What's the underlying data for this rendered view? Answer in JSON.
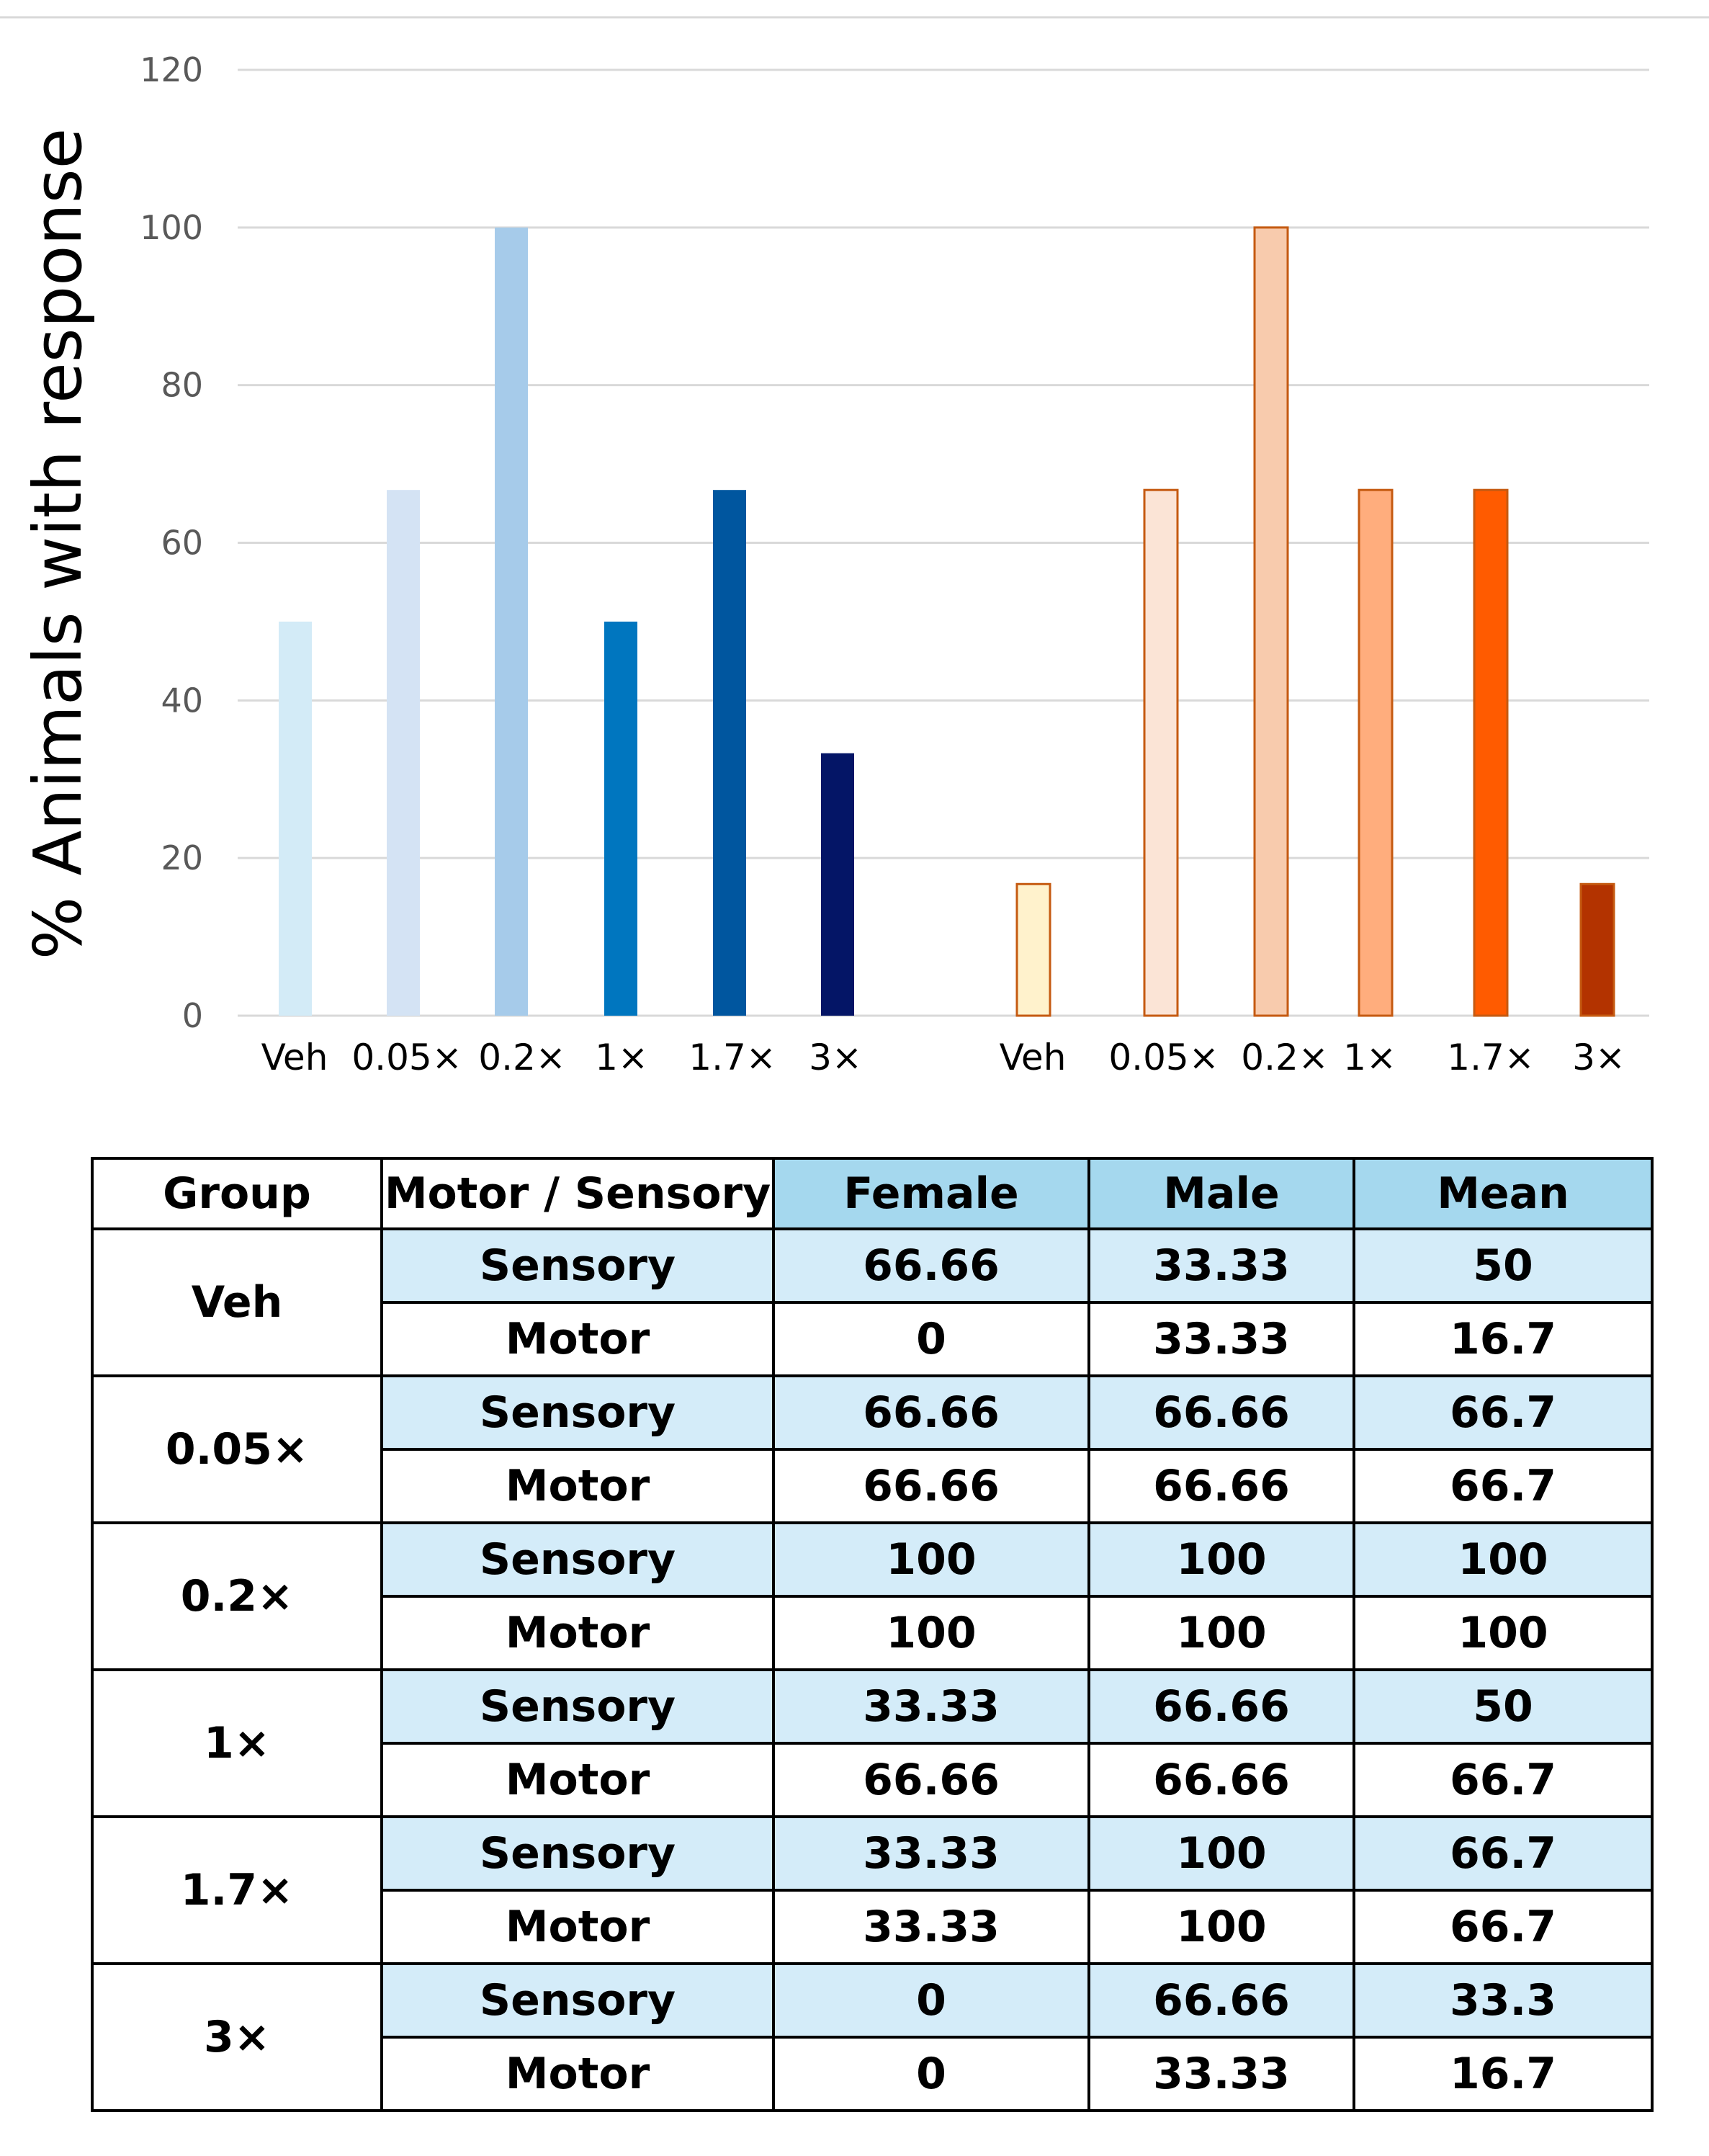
{
  "chart_data": {
    "type": "bar",
    "ylabel": "% Animals with response",
    "ylim": [
      0,
      120
    ],
    "yticks": [
      0,
      20,
      40,
      60,
      80,
      100,
      120
    ],
    "grid": true,
    "series": [
      {
        "name": "Female",
        "categories": [
          "Veh",
          "0.05×",
          "0.2×",
          "1×",
          "1.7×",
          "3×"
        ],
        "values": [
          50,
          66.7,
          100,
          50,
          66.7,
          33.3
        ],
        "colors": [
          "#d3ebf7",
          "#d4e3f4",
          "#a6cbea",
          "#0076bf",
          "#00569f",
          "#041566"
        ]
      },
      {
        "name": "Male",
        "categories": [
          "Veh",
          "0.05×",
          "0.2×",
          "1×",
          "1.7×",
          "3×"
        ],
        "values": [
          16.7,
          66.7,
          100,
          66.7,
          66.7,
          16.7
        ],
        "colors": [
          "#fff2cc",
          "#fbe4d6",
          "#f8cbad",
          "#ffad7d",
          "#ff5b00",
          "#b33300"
        ],
        "border": "#c55a11"
      }
    ]
  },
  "table": {
    "headers": [
      "Group",
      "Motor / Sensory",
      "Female",
      "Male",
      "Mean"
    ],
    "groups": [
      {
        "group": "Veh",
        "rows": [
          {
            "type": "Sensory",
            "female": "66.66",
            "male": "33.33",
            "mean": "50"
          },
          {
            "type": "Motor",
            "female": "0",
            "male": "33.33",
            "mean": "16.7"
          }
        ]
      },
      {
        "group": "0.05×",
        "rows": [
          {
            "type": "Sensory",
            "female": "66.66",
            "male": "66.66",
            "mean": "66.7"
          },
          {
            "type": "Motor",
            "female": "66.66",
            "male": "66.66",
            "mean": "66.7"
          }
        ]
      },
      {
        "group": "0.2×",
        "rows": [
          {
            "type": "Sensory",
            "female": "100",
            "male": "100",
            "mean": "100"
          },
          {
            "type": "Motor",
            "female": "100",
            "male": "100",
            "mean": "100"
          }
        ]
      },
      {
        "group": "1×",
        "rows": [
          {
            "type": "Sensory",
            "female": "33.33",
            "male": "66.66",
            "mean": "50"
          },
          {
            "type": "Motor",
            "female": "66.66",
            "male": "66.66",
            "mean": "66.7"
          }
        ]
      },
      {
        "group": "1.7×",
        "rows": [
          {
            "type": "Sensory",
            "female": "33.33",
            "male": "100",
            "mean": "66.7"
          },
          {
            "type": "Motor",
            "female": "33.33",
            "male": "100",
            "mean": "66.7"
          }
        ]
      },
      {
        "group": "3×",
        "rows": [
          {
            "type": "Sensory",
            "female": "0",
            "male": "66.66",
            "mean": "33.3"
          },
          {
            "type": "Motor",
            "female": "0",
            "male": "33.33",
            "mean": "16.7"
          }
        ]
      }
    ]
  }
}
